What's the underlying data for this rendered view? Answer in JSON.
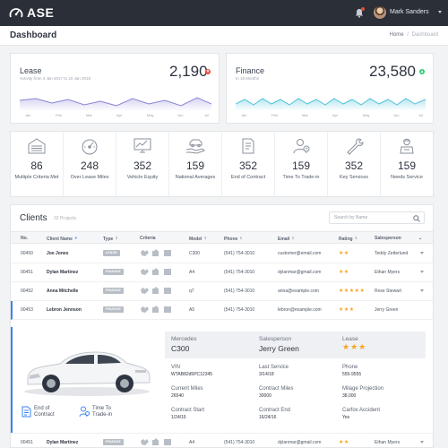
{
  "app": {
    "name": "ASE"
  },
  "user": {
    "name": "Mark Sanders"
  },
  "page": {
    "title": "Dashboard"
  },
  "breadcrumb": {
    "home": "Home",
    "sep": "/",
    "current": "Dashboard"
  },
  "kpis": [
    {
      "title": "Lease",
      "subtitle": "Activity from 4 Jan 2017 to 10 Jan 2018",
      "value": "2,190",
      "trend": "down",
      "months": [
        "Jan",
        "Feb",
        "Mar",
        "Apr",
        "May",
        "Jun",
        "Jul"
      ]
    },
    {
      "title": "Finance",
      "subtitle": "In 16 Months",
      "value": "23,580",
      "trend": "up",
      "months": [
        "Jan",
        "Feb",
        "Mar",
        "Apr",
        "May",
        "Jun",
        "Jul"
      ]
    }
  ],
  "colors": {
    "accent": "#3b82f6",
    "lease_line": "#8a83d6",
    "finance_line": "#4fc3d9",
    "star": "#f5a623",
    "down": "#e74c3c",
    "up": "#2ecc71",
    "topbar": "#2a2f38"
  },
  "stats": [
    {
      "value": "86",
      "label": "Multiple Criteria Met",
      "icon": "garage-icon"
    },
    {
      "value": "248",
      "label": "Over Lease Miles",
      "icon": "speedometer-icon"
    },
    {
      "value": "352",
      "label": "Vehicle Equity",
      "icon": "monitor-chart-icon"
    },
    {
      "value": "159",
      "label": "National Averages",
      "icon": "hand-car-icon"
    },
    {
      "value": "352",
      "label": "End of Contract",
      "icon": "contract-icon"
    },
    {
      "value": "159",
      "label": "Time To Trade-in",
      "icon": "person-clock-icon"
    },
    {
      "value": "352",
      "label": "Key Services",
      "icon": "wrench-icon"
    },
    {
      "value": "159",
      "label": "Needs Service",
      "icon": "mechanic-icon"
    }
  ],
  "clients": {
    "title": "Clients",
    "count": "32 Projects",
    "search_placeholder": "Search by Name",
    "columns": [
      "No.",
      "Client Name",
      "Type",
      "Criteria",
      "Model",
      "Phone",
      "Email",
      "Rating",
      "Salesperson"
    ],
    "rows": [
      {
        "no": "00450",
        "name": "Joe Jones",
        "type": "LEASE",
        "model": "C300",
        "phone": "(541) 754-3010",
        "email": "customer@email.com",
        "rating": "★★",
        "salesperson": "Teddy Zetterlund"
      },
      {
        "no": "00451",
        "name": "Dylan Martinez",
        "type": "FINANCE",
        "model": "A4",
        "phone": "(541) 754-3010",
        "email": "dylanmar@gmail.com",
        "rating": "★★",
        "salesperson": "Ethan Myers"
      },
      {
        "no": "00452",
        "name": "Anna Mitchelle",
        "type": "FINANCE",
        "model": "q7",
        "phone": "(541) 754-3010",
        "email": "anna@example.com",
        "rating": "★★★★★",
        "salesperson": "Rose Stewart"
      },
      {
        "no": "00453",
        "name": "Lebron Jennson",
        "type": "FINANCE",
        "model": "A5",
        "phone": "(541) 754-3010",
        "email": "lebron@example.com",
        "rating": "★★★",
        "salesperson": "Jerry Green"
      },
      {
        "no": "00451",
        "name": "Dylan Martinez",
        "type": "FINANCE",
        "model": "A4",
        "phone": "(541) 754-3010",
        "email": "dylanmar@gmail.com",
        "rating": "★★",
        "salesperson": "Ethan Myers"
      }
    ],
    "detail": {
      "make_label": "Mercedes",
      "make_value": "C300",
      "sales_label": "Salesperson",
      "sales_value": "Jerry Green",
      "lease_label": "Lease",
      "lease_stars": "★★★",
      "fields": [
        {
          "label": "VIN",
          "value": "WTAB82d5PC12345"
        },
        {
          "label": "Last Service",
          "value": "3/14/18"
        },
        {
          "label": "Phone",
          "value": "555-9555"
        },
        {
          "label": "Current Miles",
          "value": "26540"
        },
        {
          "label": "Contract Miles",
          "value": "30000"
        },
        {
          "label": "Milage Projection",
          "value": "38,000"
        },
        {
          "label": "Contract Start",
          "value": "1/24/16"
        },
        {
          "label": "Contract End",
          "value": "16/24/16"
        },
        {
          "label": "Carfox Accident",
          "value": "Yes"
        }
      ],
      "actions": [
        {
          "label": "End of Contract"
        },
        {
          "label": "Time To Trade-in"
        }
      ]
    }
  }
}
